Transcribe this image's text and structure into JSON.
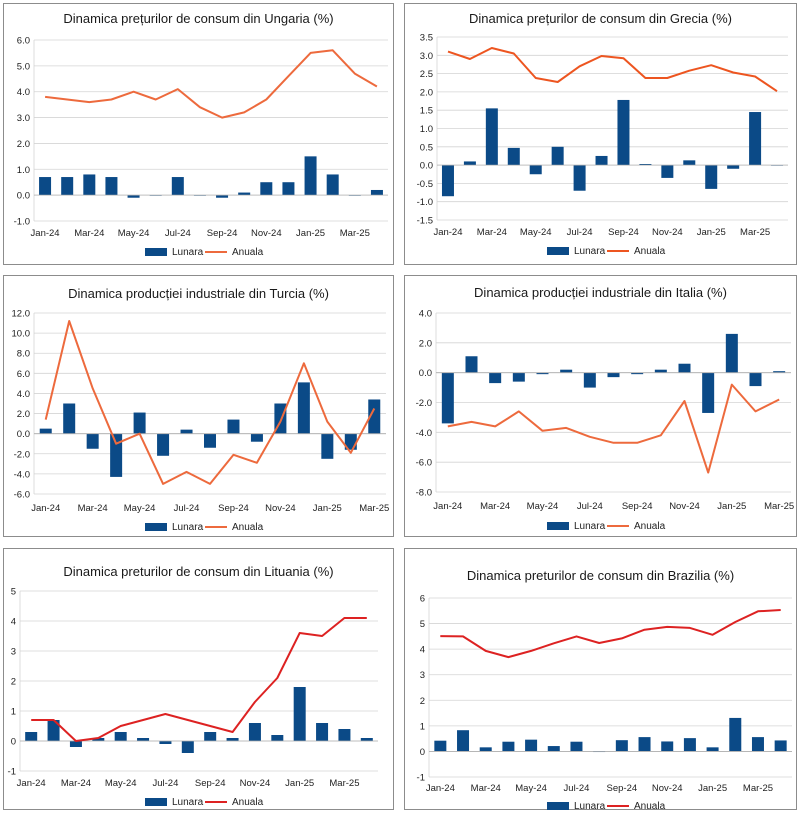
{
  "chart_data": [
    {
      "type": "bar+line",
      "title": "Dinamica prețurilor de consum din Ungaria (%)",
      "categories": [
        "Jan-24",
        "Feb-24",
        "Mar-24",
        "Apr-24",
        "May-24",
        "Jun-24",
        "Jul-24",
        "Aug-24",
        "Sep-24",
        "Oct-24",
        "Nov-24",
        "Dec-24",
        "Jan-25",
        "Feb-25",
        "Mar-25",
        "Apr-25"
      ],
      "tick_labels": [
        "Jan-24",
        "Mar-24",
        "May-24",
        "Jul-24",
        "Sep-24",
        "Nov-24",
        "Jan-25",
        "Mar-25"
      ],
      "yticks": [
        "-1.0",
        "0.0",
        "1.0",
        "2.0",
        "3.0",
        "4.0",
        "5.0",
        "6.0"
      ],
      "ylim": [
        -1,
        6
      ],
      "series": [
        {
          "name": "Lunara",
          "kind": "bar",
          "values": [
            0.7,
            0.7,
            0.8,
            0.7,
            -0.1,
            0,
            0.7,
            0,
            -0.1,
            0.1,
            0.5,
            0.5,
            1.5,
            0.8,
            0,
            0.2
          ]
        },
        {
          "name": "Anuala",
          "kind": "line",
          "values": [
            3.8,
            3.7,
            3.6,
            3.7,
            4.0,
            3.7,
            4.1,
            3.4,
            3.0,
            3.2,
            3.7,
            4.6,
            5.5,
            5.6,
            4.7,
            4.2
          ]
        }
      ],
      "bar_color": "#0b4a87",
      "line_color": "#ed6a3d"
    },
    {
      "type": "bar+line",
      "title": "Dinamica prețurilor de consum din Grecia (%)",
      "categories": [
        "Jan-24",
        "Feb-24",
        "Mar-24",
        "Apr-24",
        "May-24",
        "Jun-24",
        "Jul-24",
        "Aug-24",
        "Sep-24",
        "Oct-24",
        "Nov-24",
        "Dec-24",
        "Jan-25",
        "Feb-25",
        "Mar-25",
        "Apr-25"
      ],
      "tick_labels": [
        "Jan-24",
        "Mar-24",
        "May-24",
        "Jul-24",
        "Sep-24",
        "Nov-24",
        "Jan-25",
        "Mar-25"
      ],
      "yticks": [
        "-1.5",
        "-1.0",
        "-0.5",
        "0.0",
        "0.5",
        "1.0",
        "1.5",
        "2.0",
        "2.5",
        "3.0",
        "3.5"
      ],
      "ylim": [
        -1.5,
        3.5
      ],
      "series": [
        {
          "name": "Lunara",
          "kind": "bar",
          "values": [
            -0.85,
            0.1,
            1.55,
            0.47,
            -0.25,
            0.5,
            -0.7,
            0.25,
            1.78,
            0.03,
            -0.35,
            0.13,
            -0.65,
            -0.1,
            1.45,
            0
          ]
        },
        {
          "name": "Anuala",
          "kind": "line",
          "values": [
            3.1,
            2.9,
            3.2,
            3.05,
            2.38,
            2.27,
            2.7,
            2.98,
            2.92,
            2.38,
            2.38,
            2.58,
            2.73,
            2.53,
            2.42,
            2.02
          ]
        }
      ],
      "bar_color": "#0b4a87",
      "line_color": "#ed5520"
    },
    {
      "type": "bar+line",
      "title": "Dinamica producției industriale din Turcia (%)",
      "categories": [
        "Jan-24",
        "Feb-24",
        "Mar-24",
        "Apr-24",
        "May-24",
        "Jun-24",
        "Jul-24",
        "Aug-24",
        "Sep-24",
        "Oct-24",
        "Nov-24",
        "Dec-24",
        "Jan-25",
        "Feb-25",
        "Mar-25"
      ],
      "tick_labels": [
        "Jan-24",
        "Mar-24",
        "May-24",
        "Jul-24",
        "Sep-24",
        "Nov-24",
        "Jan-25",
        "Mar-25"
      ],
      "yticks": [
        "-6.0",
        "-4.0",
        "-2.0",
        "0.0",
        "2.0",
        "4.0",
        "6.0",
        "8.0",
        "10.0",
        "12.0"
      ],
      "ylim": [
        -6,
        12
      ],
      "series": [
        {
          "name": "Lunara",
          "kind": "bar",
          "values": [
            0.5,
            3.0,
            -1.5,
            -4.3,
            2.1,
            -2.2,
            0.4,
            -1.4,
            1.4,
            -0.8,
            3.0,
            5.1,
            -2.5,
            -1.6,
            3.4
          ]
        },
        {
          "name": "Anuala",
          "kind": "line",
          "values": [
            1.4,
            11.2,
            4.5,
            -1.0,
            0.0,
            -5.0,
            -3.8,
            -5.0,
            -2.1,
            -2.9,
            1.2,
            7.0,
            1.2,
            -1.9,
            2.5
          ]
        }
      ],
      "bar_color": "#0b4a87",
      "line_color": "#ed6a3d"
    },
    {
      "type": "bar+line",
      "title": "Dinamica producției industriale din Italia (%)",
      "categories": [
        "Jan-24",
        "Feb-24",
        "Mar-24",
        "Apr-24",
        "May-24",
        "Jun-24",
        "Jul-24",
        "Aug-24",
        "Sep-24",
        "Oct-24",
        "Nov-24",
        "Dec-24",
        "Jan-25",
        "Feb-25",
        "Mar-25"
      ],
      "tick_labels": [
        "Jan-24",
        "Mar-24",
        "May-24",
        "Jul-24",
        "Sep-24",
        "Nov-24",
        "Jan-25",
        "Mar-25"
      ],
      "yticks": [
        "-8.0",
        "-6.0",
        "-4.0",
        "-2.0",
        "0.0",
        "2.0",
        "4.0"
      ],
      "ylim": [
        -8,
        4
      ],
      "series": [
        {
          "name": "Lunara",
          "kind": "bar",
          "values": [
            -3.4,
            1.1,
            -0.7,
            -0.6,
            -0.1,
            0.2,
            -1.0,
            -0.3,
            -0.1,
            0.2,
            0.6,
            -2.7,
            2.6,
            -0.9,
            0.1
          ]
        },
        {
          "name": "Anuala",
          "kind": "line",
          "values": [
            -3.6,
            -3.3,
            -3.6,
            -2.6,
            -3.9,
            -3.7,
            -4.3,
            -4.7,
            -4.7,
            -4.2,
            -1.9,
            -6.7,
            -0.8,
            -2.6,
            -1.8
          ]
        }
      ],
      "bar_color": "#0b4a87",
      "line_color": "#ed6a3d"
    },
    {
      "type": "bar+line",
      "title": "Dinamica preturilor de consum din Lituania (%)",
      "categories": [
        "Jan-24",
        "Feb-24",
        "Mar-24",
        "Apr-24",
        "May-24",
        "Jun-24",
        "Jul-24",
        "Aug-24",
        "Sep-24",
        "Oct-24",
        "Nov-24",
        "Dec-24",
        "Jan-25",
        "Feb-25",
        "Mar-25",
        "Apr-25"
      ],
      "tick_labels": [
        "Jan-24",
        "Mar-24",
        "May-24",
        "Jul-24",
        "Sep-24",
        "Nov-24",
        "Jan-25",
        "Mar-25"
      ],
      "yticks": [
        "-1",
        "0",
        "1",
        "2",
        "3",
        "4",
        "5"
      ],
      "ylim": [
        -1,
        5
      ],
      "series": [
        {
          "name": "Lunara",
          "kind": "bar",
          "values": [
            0.3,
            0.7,
            -0.2,
            0.1,
            0.3,
            0.1,
            -0.1,
            -0.4,
            0.3,
            0.1,
            0.6,
            0.2,
            1.8,
            0.6,
            0.4,
            0.1
          ]
        },
        {
          "name": "Anuala",
          "kind": "line",
          "values": [
            0.7,
            0.7,
            0.0,
            0.1,
            0.5,
            0.7,
            0.9,
            0.7,
            0.5,
            0.3,
            1.3,
            2.1,
            3.6,
            3.5,
            4.1,
            4.1
          ]
        }
      ],
      "bar_color": "#0b4a87",
      "line_color": "#dd2222"
    },
    {
      "type": "bar+line",
      "title": "Dinamica preturilor de consum din Brazilia (%)",
      "categories": [
        "Jan-24",
        "Feb-24",
        "Mar-24",
        "Apr-24",
        "May-24",
        "Jun-24",
        "Jul-24",
        "Aug-24",
        "Sep-24",
        "Oct-24",
        "Nov-24",
        "Dec-24",
        "Jan-25",
        "Feb-25",
        "Mar-25",
        "Apr-25"
      ],
      "tick_labels": [
        "Jan-24",
        "Mar-24",
        "May-24",
        "Jul-24",
        "Sep-24",
        "Nov-24",
        "Jan-25",
        "Mar-25"
      ],
      "yticks": [
        "-1",
        "0",
        "1",
        "2",
        "3",
        "4",
        "5",
        "6"
      ],
      "ylim": [
        -1,
        6
      ],
      "series": [
        {
          "name": "Lunara",
          "kind": "bar",
          "values": [
            0.42,
            0.83,
            0.16,
            0.38,
            0.46,
            0.21,
            0.38,
            -0.02,
            0.44,
            0.56,
            0.39,
            0.52,
            0.16,
            1.31,
            0.56,
            0.43
          ]
        },
        {
          "name": "Anuala",
          "kind": "line",
          "values": [
            4.51,
            4.5,
            3.93,
            3.69,
            3.93,
            4.23,
            4.5,
            4.24,
            4.42,
            4.76,
            4.87,
            4.83,
            4.56,
            5.06,
            5.48,
            5.53
          ]
        }
      ],
      "bar_color": "#0b4a87",
      "line_color": "#dd2222"
    }
  ]
}
